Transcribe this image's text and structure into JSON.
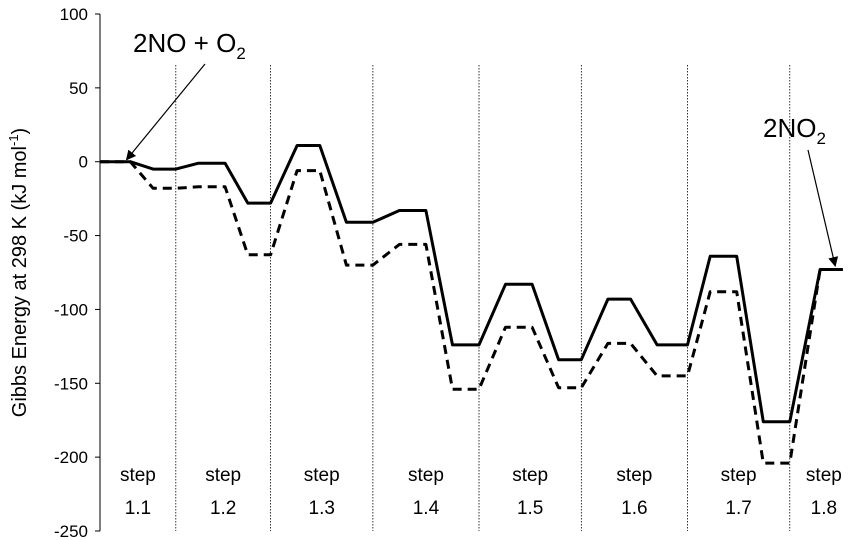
{
  "chart_data": {
    "type": "line",
    "title": "",
    "xlabel": "",
    "ylabel": "Gibbs Energy at 298 K (kJ mol-1)",
    "ylabel_parts": {
      "main": "Gibbs Energy at 298 K (kJ mol",
      "sup": "-1",
      "close": ")"
    },
    "ylim": [
      -250,
      100
    ],
    "yticks": [
      -250,
      -200,
      -150,
      -100,
      -50,
      0,
      50,
      100
    ],
    "ytick_labels": [
      "-250",
      "-200",
      "-150",
      "-100",
      "-50",
      "0",
      "50",
      "100"
    ],
    "grid": false,
    "legend": "none",
    "steps": [
      {
        "word": "step",
        "num": "1.1"
      },
      {
        "word": "step",
        "num": "1.2"
      },
      {
        "word": "step",
        "num": "1.3"
      },
      {
        "word": "step",
        "num": "1.4"
      },
      {
        "word": "step",
        "num": "1.5"
      },
      {
        "word": "step",
        "num": "1.6"
      },
      {
        "word": "step",
        "num": "1.7"
      },
      {
        "word": "step",
        "num": "1.8"
      }
    ],
    "step_boundaries": [
      0.2,
      0.45,
      0.72,
      1.0,
      1.27,
      1.55,
      1.82
    ],
    "x_range": [
      0,
      2.0
    ],
    "series": [
      {
        "style": "solid",
        "color": "#000000",
        "points": [
          [
            0.0,
            0
          ],
          [
            0.08,
            0
          ],
          [
            0.14,
            -5
          ],
          [
            0.2,
            -5
          ],
          [
            0.26,
            -1
          ],
          [
            0.33,
            -1
          ],
          [
            0.39,
            -28
          ],
          [
            0.45,
            -28
          ],
          [
            0.52,
            11
          ],
          [
            0.58,
            11
          ],
          [
            0.65,
            -41
          ],
          [
            0.72,
            -41
          ],
          [
            0.79,
            -33
          ],
          [
            0.86,
            -33
          ],
          [
            0.93,
            -124
          ],
          [
            1.0,
            -124
          ],
          [
            1.07,
            -83
          ],
          [
            1.14,
            -83
          ],
          [
            1.21,
            -134
          ],
          [
            1.27,
            -134
          ],
          [
            1.34,
            -93
          ],
          [
            1.4,
            -93
          ],
          [
            1.47,
            -124
          ],
          [
            1.55,
            -124
          ],
          [
            1.61,
            -64
          ],
          [
            1.68,
            -64
          ],
          [
            1.75,
            -176
          ],
          [
            1.82,
            -176
          ],
          [
            1.9,
            -73
          ],
          [
            1.96,
            -73
          ]
        ]
      },
      {
        "style": "dashed",
        "color": "#000000",
        "points": [
          [
            0.0,
            0
          ],
          [
            0.08,
            0
          ],
          [
            0.14,
            -18
          ],
          [
            0.2,
            -18
          ],
          [
            0.26,
            -17
          ],
          [
            0.33,
            -17
          ],
          [
            0.39,
            -63
          ],
          [
            0.45,
            -63
          ],
          [
            0.52,
            -6
          ],
          [
            0.58,
            -6
          ],
          [
            0.65,
            -70
          ],
          [
            0.72,
            -70
          ],
          [
            0.79,
            -56
          ],
          [
            0.86,
            -56
          ],
          [
            0.93,
            -154
          ],
          [
            1.0,
            -154
          ],
          [
            1.07,
            -112
          ],
          [
            1.14,
            -112
          ],
          [
            1.21,
            -153
          ],
          [
            1.27,
            -153
          ],
          [
            1.34,
            -123
          ],
          [
            1.4,
            -123
          ],
          [
            1.47,
            -145
          ],
          [
            1.55,
            -145
          ],
          [
            1.61,
            -88
          ],
          [
            1.68,
            -88
          ],
          [
            1.75,
            -204
          ],
          [
            1.82,
            -204
          ],
          [
            1.9,
            -73
          ],
          [
            1.96,
            -73
          ]
        ]
      }
    ],
    "annotations": [
      {
        "text": "2NO + O",
        "sub": "2",
        "target": [
          0.07,
          0
        ]
      },
      {
        "text": "2NO",
        "sub": "2",
        "target": [
          1.94,
          -72
        ]
      }
    ]
  }
}
